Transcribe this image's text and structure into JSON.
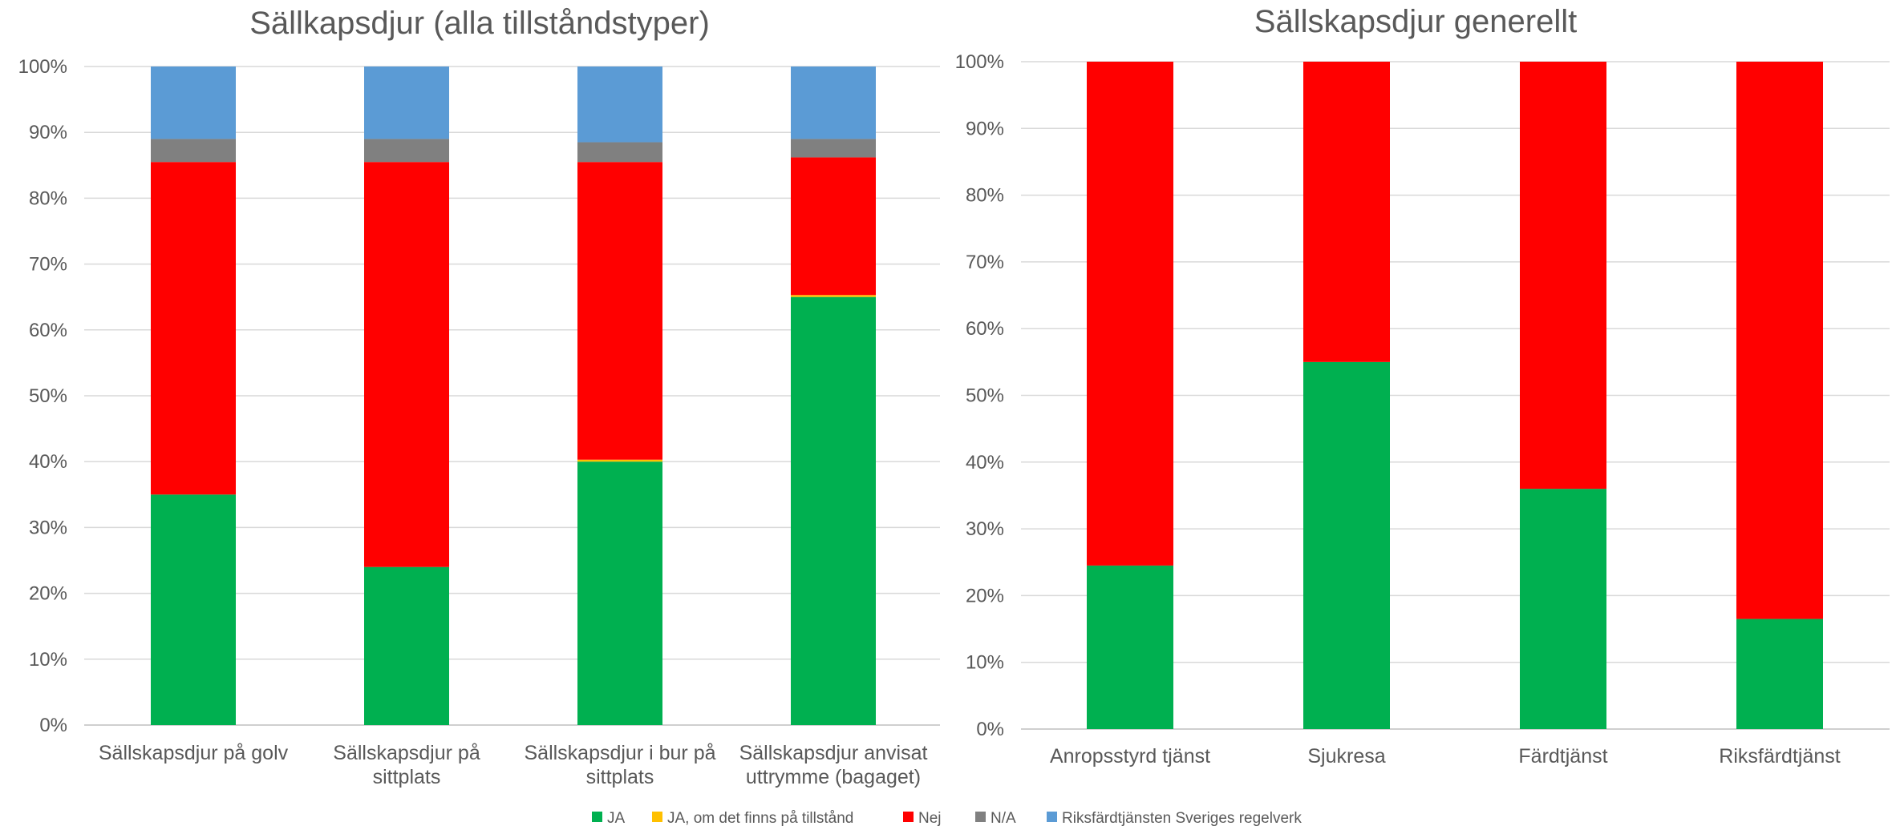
{
  "colors": {
    "JA": "#00B050",
    "JA, om det finns på tillstånd": "#FFC000",
    "Nej": "#FF0000",
    "N/A": "#808080",
    "Riksfärdtjänsten Sveriges regelverk": "#5B9BD5"
  },
  "legend": [
    "JA",
    "JA, om det finns på tillstånd",
    "Nej",
    "N/A",
    "Riksfärdtjänsten Sveriges regelverk"
  ],
  "chart_data": [
    {
      "type": "bar",
      "stacked": true,
      "normalized": true,
      "title": "Sällkapsdjur (alla tillståndstyper)",
      "categories": [
        [
          "Sällskapsdjur på golv"
        ],
        [
          "Sällskapsdjur på",
          "sittplats"
        ],
        [
          "Sällskapsdjur i bur på",
          "sittplats"
        ],
        [
          "Sällskapsdjur anvisat",
          "uttrymme (bagaget)"
        ]
      ],
      "yticks": [
        "0%",
        "10%",
        "20%",
        "30%",
        "40%",
        "50%",
        "60%",
        "70%",
        "80%",
        "90%",
        "100%"
      ],
      "ylim": [
        0,
        100
      ],
      "grid": true,
      "series": [
        {
          "name": "JA",
          "values": [
            35,
            24,
            40,
            65
          ]
        },
        {
          "name": "JA, om det finns på tillstånd",
          "values": [
            0,
            0,
            0.3,
            0.3
          ]
        },
        {
          "name": "Nej",
          "values": [
            50.5,
            61.5,
            45.2,
            20.9
          ]
        },
        {
          "name": "N/A",
          "values": [
            3.5,
            3.5,
            3,
            2.8
          ]
        },
        {
          "name": "Riksfärdtjänsten Sveriges regelverk",
          "values": [
            11,
            11,
            11.5,
            11
          ]
        }
      ]
    },
    {
      "type": "bar",
      "stacked": true,
      "normalized": true,
      "title": "Sällskapsdjur  generellt",
      "categories": [
        [
          "Anropsstyrd tjänst"
        ],
        [
          "Sjukresa"
        ],
        [
          "Färdtjänst"
        ],
        [
          "Riksfärdtjänst"
        ]
      ],
      "yticks": [
        "0%",
        "10%",
        "20%",
        "30%",
        "40%",
        "50%",
        "60%",
        "70%",
        "80%",
        "90%",
        "100%"
      ],
      "ylim": [
        0,
        100
      ],
      "grid": true,
      "series": [
        {
          "name": "JA",
          "values": [
            24.5,
            55,
            36,
            16.5
          ]
        },
        {
          "name": "Nej",
          "values": [
            75.5,
            45,
            64,
            83.5
          ]
        }
      ]
    }
  ]
}
